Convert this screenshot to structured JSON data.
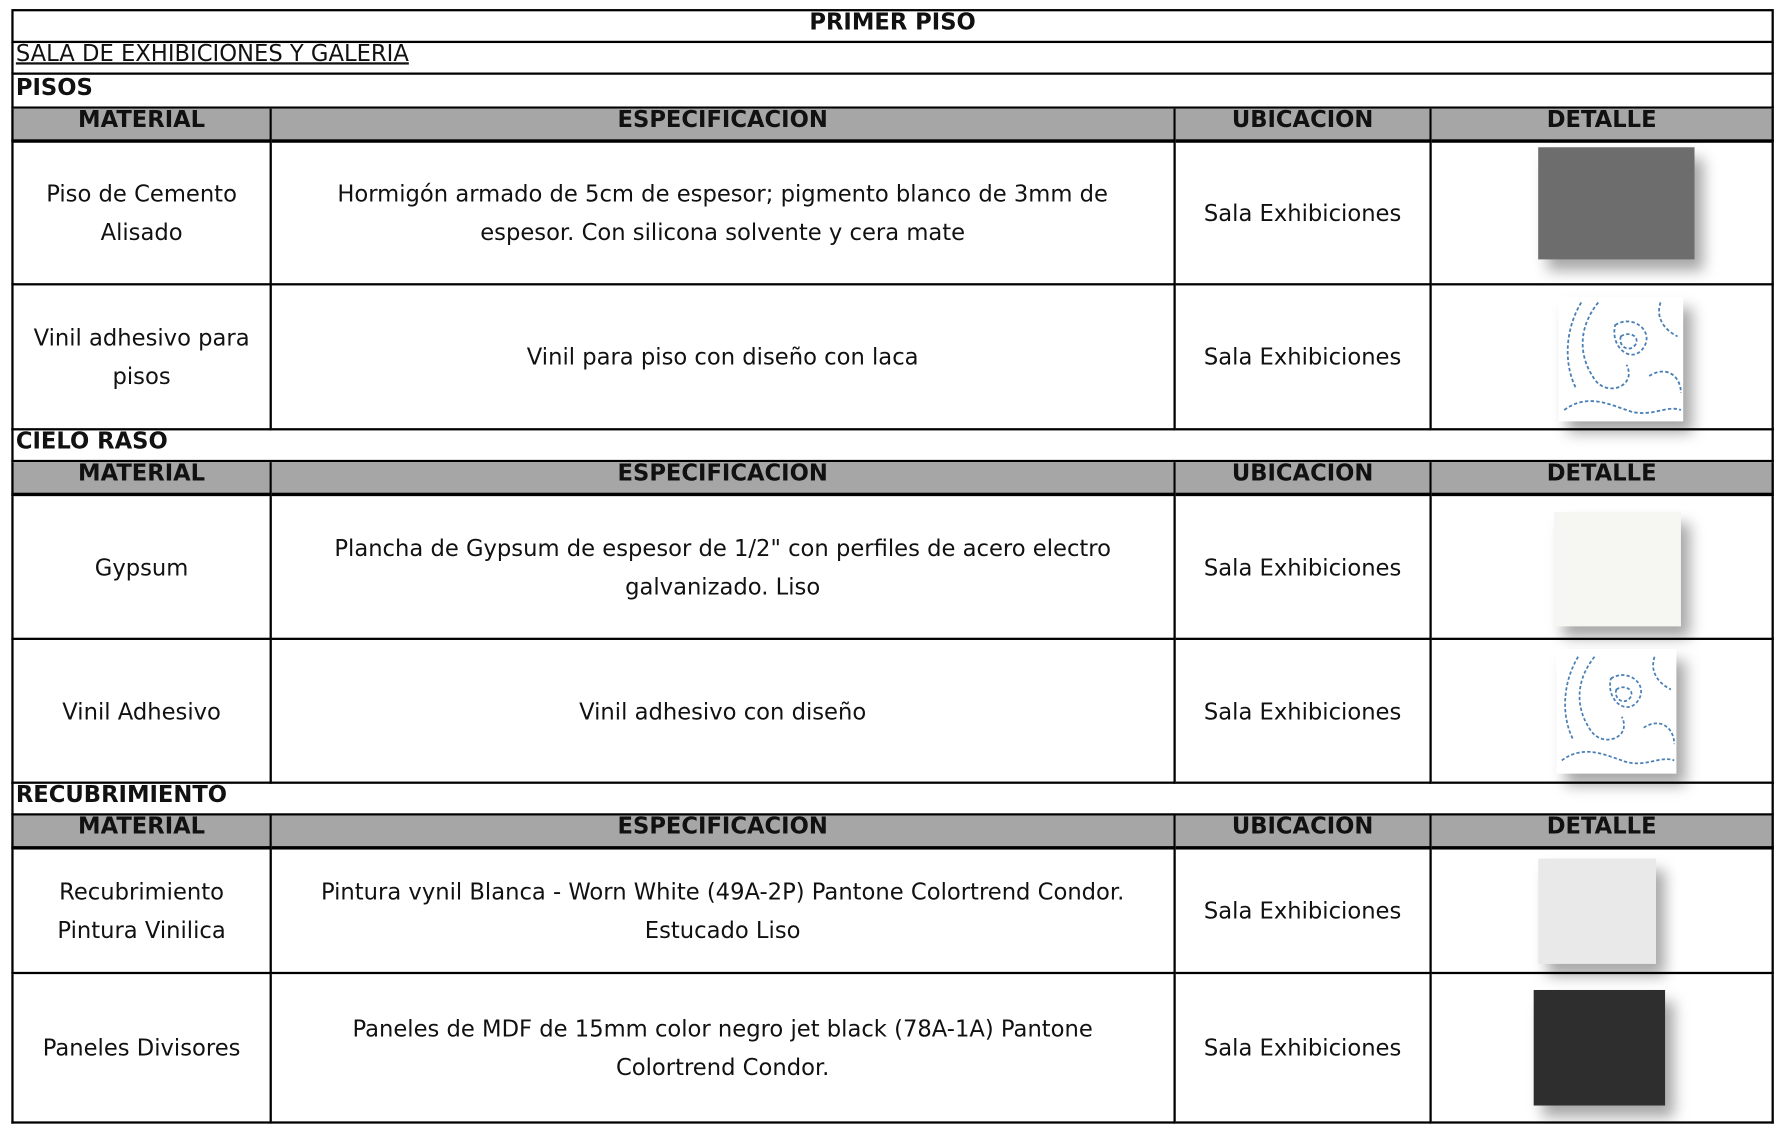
{
  "title": "PRIMER PISO",
  "subtitle": "SALA DE EXHIBICIONES Y GALERIA",
  "sections": [
    {
      "title": "PISOS",
      "headers": [
        "MATERIAL",
        "ESPECIFICACION",
        "UBICACION",
        "DETALLE"
      ],
      "rows": [
        {
          "material": "Piso de Cemento Alisado",
          "especificacion": "Hormigón armado de 5cm de espesor; pigmento blanco de 3mm de espesor. Con silicona solvente y cera mate",
          "ubicacion": "Sala Exhibiciones"
        },
        {
          "material": "Vinil adhesivo para pisos",
          "especificacion": "Vinil para piso con diseño con laca",
          "ubicacion": "Sala Exhibiciones"
        }
      ]
    },
    {
      "title": "CIELO RASO",
      "headers": [
        "MATERIAL",
        "ESPECIFICACION",
        "UBICACION",
        "DETALLE"
      ],
      "rows": [
        {
          "material": "Gypsum",
          "especificacion": "Plancha de Gypsum de espesor de 1/2\" con perfiles de acero electro galvanizado. Liso",
          "ubicacion": "Sala Exhibiciones"
        },
        {
          "material": "Vinil Adhesivo",
          "especificacion": "Vinil adhesivo con diseño",
          "ubicacion": "Sala Exhibiciones"
        }
      ]
    },
    {
      "title": "RECUBRIMIENTO",
      "headers": [
        "MATERIAL",
        "ESPECIFICACION",
        "UBICACION",
        "DETALLE"
      ],
      "rows": [
        {
          "material": "Recubrimiento Pintura Vinilica",
          "especificacion": "Pintura vynil Blanca - Worn White (49A-2P) Pantone Colortrend Condor. Estucado Liso",
          "ubicacion": "Sala Exhibiciones"
        },
        {
          "material": "Paneles Divisores",
          "especificacion": "Paneles de MDF de 15mm color negro jet black (78A-1A) Pantone Colortrend Condor.",
          "ubicacion": "Sala Exhibiciones"
        }
      ]
    }
  ]
}
